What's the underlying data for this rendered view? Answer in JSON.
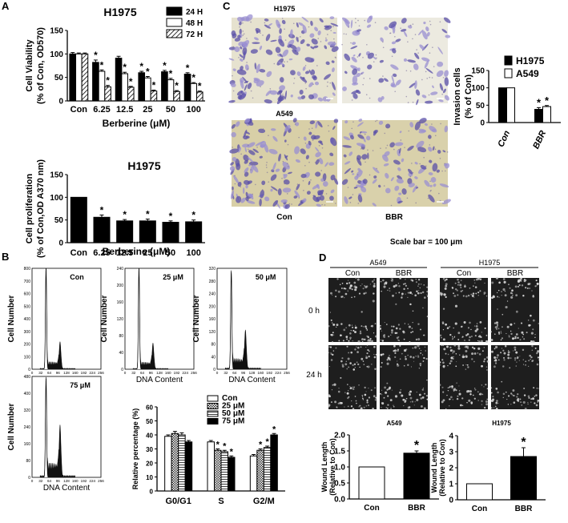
{
  "panels": {
    "A": "A",
    "B": "B",
    "C": "C",
    "D": "D"
  },
  "chart_data": [
    {
      "id": "A1",
      "type": "bar",
      "title": "H1975",
      "xlabel": "Berberine (μM)",
      "ylabel_lines": [
        "Cell Viability",
        "(% of Con, OD570)"
      ],
      "categories": [
        "Con",
        "6.25",
        "12.5",
        "25",
        "50",
        "100"
      ],
      "ylim": [
        0,
        150
      ],
      "yticks": [
        "0",
        "50",
        "100",
        "150"
      ],
      "series": [
        {
          "name": "24 H",
          "values": [
            100,
            82,
            91,
            60,
            62,
            57
          ],
          "errors": [
            3,
            5,
            4,
            3,
            3,
            3
          ],
          "stars": [
            false,
            true,
            false,
            true,
            true,
            true
          ],
          "fill": "solid"
        },
        {
          "name": "48 H",
          "values": [
            100,
            63,
            58,
            49,
            45,
            37
          ],
          "errors": [
            2,
            3,
            3,
            3,
            3,
            2
          ],
          "stars": [
            false,
            true,
            true,
            true,
            true,
            true
          ],
          "fill": "white"
        },
        {
          "name": "72 H",
          "values": [
            100,
            30,
            29,
            21,
            20,
            19
          ],
          "errors": [
            2,
            3,
            2,
            2,
            2,
            2
          ],
          "stars": [
            false,
            true,
            true,
            true,
            true,
            true
          ],
          "fill": "hatch"
        }
      ]
    },
    {
      "id": "A2",
      "type": "bar",
      "title": "H1975",
      "xlabel": "Berberine (μM)",
      "ylabel_lines": [
        "Cell proliferation",
        "(% of Con,OD A370 nm)"
      ],
      "categories": [
        "Con",
        "6.25",
        "12.5",
        "25",
        "50",
        "100"
      ],
      "ylim": [
        0,
        150
      ],
      "yticks": [
        "0",
        "50",
        "100",
        "150"
      ],
      "series": [
        {
          "values": [
            100,
            56,
            48,
            48,
            45,
            46
          ],
          "errors": [
            0,
            5,
            3,
            4,
            3,
            4
          ],
          "stars": [
            false,
            true,
            true,
            true,
            true,
            true
          ],
          "fill": "solid"
        }
      ]
    },
    {
      "id": "B-hist",
      "type": "area",
      "xlabel": "DNA Content",
      "ylabel": "Cell Number",
      "xticks": [
        "0",
        "32",
        "64",
        "96",
        "128",
        "160",
        "192",
        "224",
        "256"
      ],
      "plots": [
        {
          "label": "Con",
          "ymax": 800,
          "yticks": [
            "0",
            "100",
            "200",
            "300",
            "400",
            "500",
            "600",
            "700",
            "800"
          ],
          "g1": 800,
          "g2": 210
        },
        {
          "label": "25 μM",
          "ymax": 240,
          "yticks": [
            "0",
            "40",
            "80",
            "120",
            "160",
            "200",
            "240"
          ],
          "g1": 240,
          "g2": 60
        },
        {
          "label": "50 μM",
          "ymax": 320,
          "yticks": [
            "0",
            "40",
            "80",
            "120",
            "160",
            "200",
            "240",
            "280",
            "320"
          ],
          "g1": 310,
          "g2": 120
        },
        {
          "label": "75 μM",
          "ymax": 480,
          "yticks": [
            "0",
            "80",
            "160",
            "240",
            "320",
            "400",
            "480"
          ],
          "g1": 470,
          "g2": 240
        }
      ]
    },
    {
      "id": "B-bar",
      "type": "bar",
      "ylabel": "Relative percentage (%)",
      "categories": [
        "G0/G1",
        "S",
        "G2/M"
      ],
      "ylim": [
        0,
        60
      ],
      "yticks": [
        "0",
        "10",
        "20",
        "30",
        "40",
        "50",
        "60"
      ],
      "series": [
        {
          "name": "Con",
          "fill": "white",
          "values": [
            39,
            35,
            25
          ],
          "errors": [
            1,
            1,
            1
          ],
          "stars": [
            false,
            false,
            false
          ]
        },
        {
          "name": "25 μM",
          "fill": "checker",
          "values": [
            41,
            29,
            29
          ],
          "errors": [
            1.5,
            1,
            1
          ],
          "stars": [
            false,
            true,
            true
          ]
        },
        {
          "name": "50 μM",
          "fill": "hlines",
          "values": [
            40,
            28,
            31
          ],
          "errors": [
            1.5,
            1,
            1
          ],
          "stars": [
            false,
            true,
            true
          ]
        },
        {
          "name": "75 μM",
          "fill": "solid",
          "values": [
            35,
            24,
            40
          ],
          "errors": [
            1,
            1,
            1
          ],
          "stars": [
            false,
            true,
            true
          ]
        }
      ]
    },
    {
      "id": "C-bar",
      "type": "bar",
      "ylabel_lines": [
        "Invasion cells",
        "(% of Con)"
      ],
      "categories": [
        "Con",
        "BBR"
      ],
      "ylim": [
        0,
        150
      ],
      "yticks": [
        "0",
        "50",
        "100",
        "150"
      ],
      "series": [
        {
          "name": "H1975",
          "fill": "solid",
          "values": [
            100,
            38
          ],
          "errors": [
            0,
            5
          ],
          "stars": [
            false,
            true
          ]
        },
        {
          "name": "A549",
          "fill": "white",
          "values": [
            100,
            46
          ],
          "errors": [
            0,
            3
          ],
          "stars": [
            false,
            true
          ]
        }
      ]
    },
    {
      "id": "D1",
      "type": "bar",
      "title": "A549",
      "ylabel_lines": [
        "Wound Length",
        "(Relative to Con)"
      ],
      "categories": [
        "Con",
        "BBR"
      ],
      "ylim": [
        0,
        2.0
      ],
      "yticks": [
        "0.0",
        "0.5",
        "1.0",
        "1.5",
        "2.0"
      ],
      "series": [
        {
          "values": [
            1.0,
            1.43
          ],
          "errors": [
            0,
            0.07
          ],
          "stars": [
            false,
            true
          ],
          "fills": [
            "white",
            "solid"
          ]
        }
      ]
    },
    {
      "id": "D2",
      "type": "bar",
      "title": "H1975",
      "ylabel_lines": [
        "Wound Length",
        "(Relative to Con)"
      ],
      "categories": [
        "Con",
        "BBR"
      ],
      "ylim": [
        0,
        4
      ],
      "yticks": [
        "0",
        "1",
        "2",
        "3",
        "4"
      ],
      "series": [
        {
          "values": [
            1,
            2.7
          ],
          "errors": [
            0,
            0.55
          ],
          "stars": [
            false,
            true
          ],
          "fills": [
            "white",
            "solid"
          ]
        }
      ]
    }
  ],
  "micro_c": {
    "row_labels": [
      "H1975",
      "A549"
    ],
    "col_labels": [
      "Con",
      "BBR"
    ],
    "scale_bar": "Scale bar = 100 μm"
  },
  "micro_d": {
    "group_labels": [
      "A549",
      "H1975"
    ],
    "col_labels": [
      "Con",
      "BBR",
      "Con",
      "BBR"
    ],
    "row_labels": [
      "0 h",
      "24 h"
    ]
  },
  "colors": {
    "stain": "#8a7ec8",
    "bg_c": "#e8e4c8",
    "bg_c2": "#d9cfa6",
    "dark": "#1c1c1c"
  }
}
